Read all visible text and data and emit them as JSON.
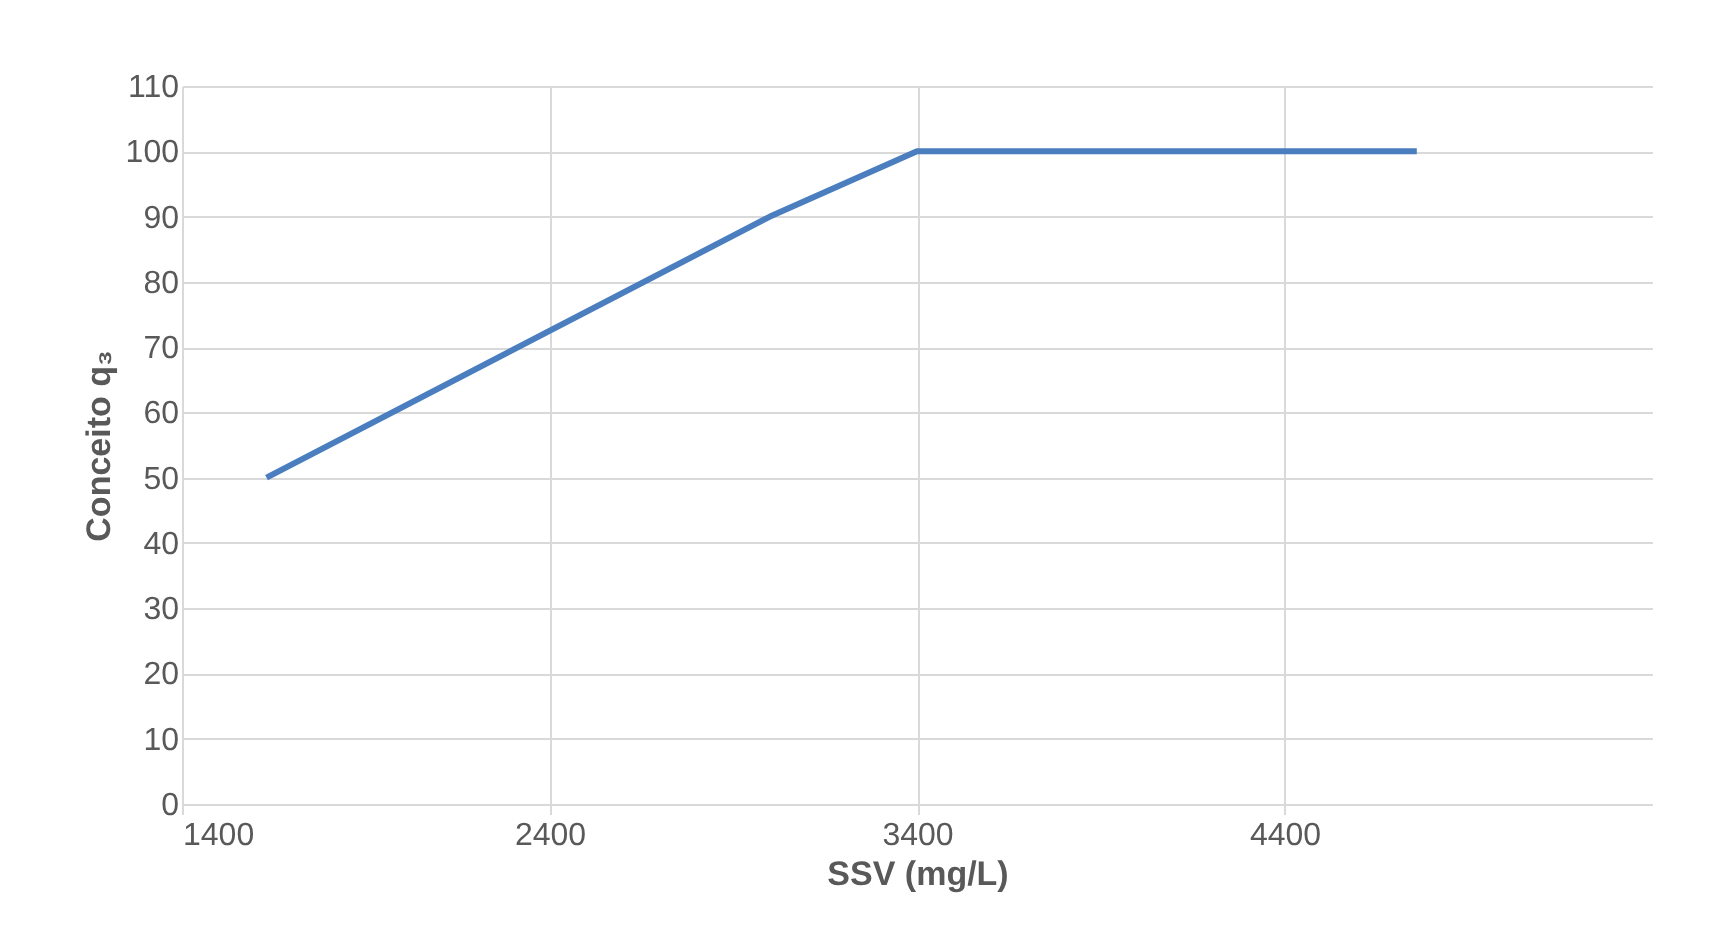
{
  "chart_data": {
    "type": "line",
    "xlabel": "SSV (mg/L)",
    "ylabel": "Conceito q₃",
    "x": [
      1630,
      3000,
      3400,
      4760
    ],
    "series": [
      {
        "color": "#4a7ebf",
        "values": [
          50,
          90,
          100,
          100
        ]
      }
    ],
    "xlim": [
      1400,
      5400
    ],
    "xticks": [
      1400,
      2400,
      3400,
      4400
    ],
    "ylim": [
      0,
      110
    ],
    "yticks": [
      0,
      10,
      20,
      30,
      40,
      50,
      60,
      70,
      80,
      90,
      100,
      110
    ],
    "grid": true,
    "marker": "none",
    "line_style": "solid"
  }
}
